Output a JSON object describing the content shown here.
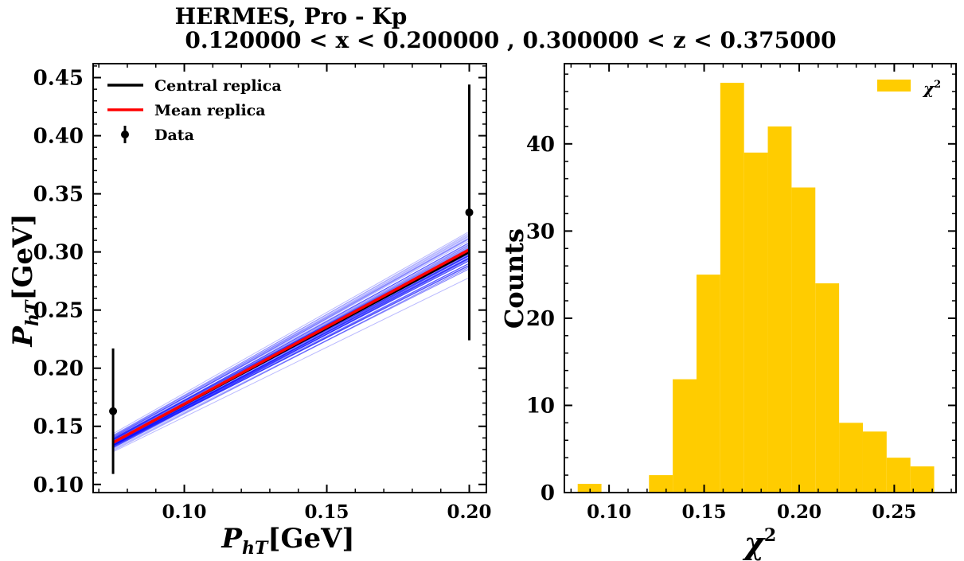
{
  "title_lines": [
    "HERMES, Pro - Kp",
    "0.120000 < x < 0.200000 , 0.300000 < z < 0.375000"
  ],
  "chart_data": [
    {
      "type": "line",
      "xlabel_main": "P",
      "xlabel_sub": "hT",
      "xlabel_unit": "[GeV]",
      "ylabel_main": "P",
      "ylabel_sub": "hT",
      "ylabel_unit": "[GeV]",
      "xlim": [
        0.068,
        0.206
      ],
      "ylim": [
        0.093,
        0.462
      ],
      "xticks": [
        0.1,
        0.15,
        0.2
      ],
      "xtick_labels": [
        "0.10",
        "0.15",
        "0.20"
      ],
      "yticks": [
        0.1,
        0.15,
        0.2,
        0.25,
        0.3,
        0.35,
        0.4,
        0.45
      ],
      "ytick_labels": [
        "0.10",
        "0.15",
        "0.20",
        "0.25",
        "0.30",
        "0.35",
        "0.40",
        "0.45"
      ],
      "legend_position": "top-left",
      "replica_band": {
        "x": [
          0.075,
          0.2
        ],
        "y_low_spread": [
          0.126,
          0.278
        ],
        "y_high_spread": [
          0.147,
          0.323
        ],
        "n_replicas": 80,
        "color": "#0000ff"
      },
      "series": [
        {
          "name": "Central replica",
          "color": "#000000",
          "x": [
            0.075,
            0.2
          ],
          "y": [
            0.136,
            0.3
          ]
        },
        {
          "name": "Mean replica",
          "color": "#ff0000",
          "x": [
            0.075,
            0.2
          ],
          "y": [
            0.136,
            0.302
          ]
        }
      ],
      "data_points": {
        "name": "Data",
        "color": "#000000",
        "x": [
          0.075,
          0.2
        ],
        "y": [
          0.163,
          0.334
        ],
        "yerr": [
          0.054,
          0.11
        ]
      }
    },
    {
      "type": "bar",
      "subtype": "histogram",
      "xlabel_main": "χ",
      "xlabel_sup": "2",
      "ylabel": "Counts",
      "xlim": [
        0.0765,
        0.2825
      ],
      "ylim": [
        0,
        49.2
      ],
      "xticks": [
        0.1,
        0.15,
        0.2,
        0.25
      ],
      "xtick_labels": [
        "0.10",
        "0.15",
        "0.20",
        "0.25"
      ],
      "yticks": [
        0,
        10,
        20,
        30,
        40
      ],
      "ytick_labels": [
        "0",
        "10",
        "20",
        "30",
        "40"
      ],
      "legend_position": "top-right",
      "series": [
        {
          "name_main": "χ",
          "name_sup": "2",
          "color": "#ffcc00",
          "bin_start": 0.0835,
          "bin_width": 0.0125,
          "counts": [
            1,
            0,
            0,
            2,
            13,
            25,
            47,
            39,
            42,
            35,
            24,
            8,
            7,
            4,
            3
          ]
        }
      ]
    }
  ]
}
